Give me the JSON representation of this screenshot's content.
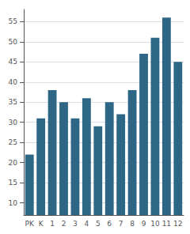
{
  "chart_data": {
    "type": "bar",
    "categories": [
      "PK",
      "K",
      "1",
      "2",
      "3",
      "4",
      "5",
      "6",
      "7",
      "8",
      "9",
      "10",
      "11",
      "12"
    ],
    "values": [
      22,
      31,
      38,
      35,
      31,
      36,
      29,
      35,
      32,
      38,
      47,
      51,
      56,
      45
    ],
    "color": "#2e6685",
    "ylim": [
      7,
      58
    ],
    "yticks": [
      10,
      15,
      20,
      25,
      30,
      35,
      40,
      45,
      50,
      55
    ],
    "grid": true
  }
}
